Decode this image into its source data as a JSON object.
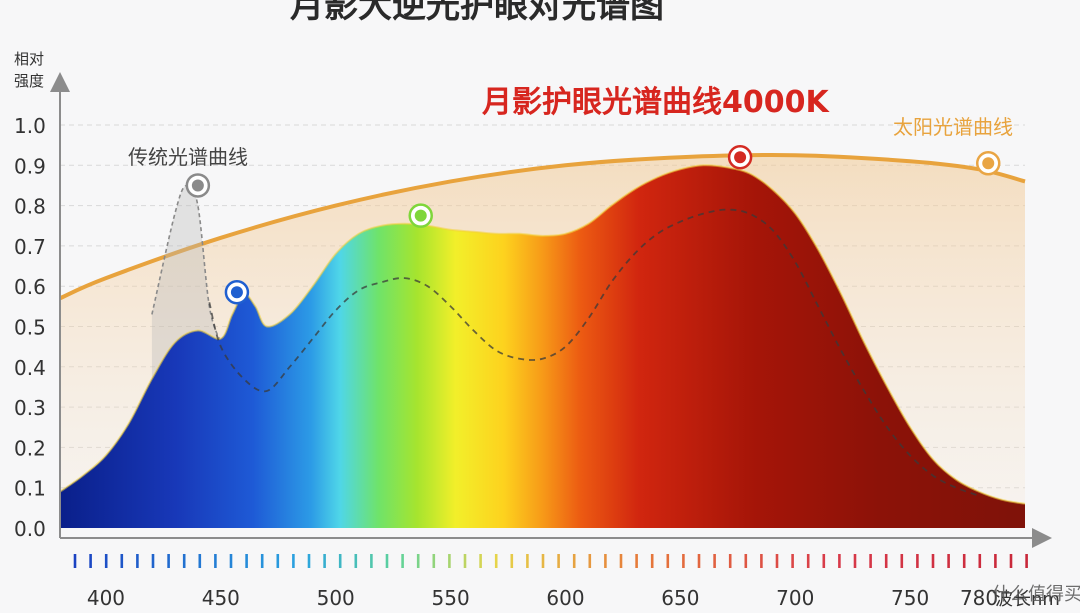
{
  "page_title": "月影大逆光护眼对光谱图",
  "watermark": "什么值得买",
  "chart_data": {
    "type": "area",
    "title": "月影护眼光谱曲线4000K",
    "ylabel": "相对强度",
    "xlabel": "波长nm",
    "xlim": [
      380,
      800
    ],
    "ylim": [
      0,
      1.0
    ],
    "x_ticks": [
      400,
      450,
      500,
      550,
      600,
      650,
      700,
      750,
      780
    ],
    "y_ticks": [
      "0.0",
      "0.1",
      "0.2",
      "0.3",
      "0.4",
      "0.5",
      "0.6",
      "0.7",
      "0.8",
      "0.9",
      "1.0"
    ],
    "grid": true,
    "series": [
      {
        "name": "月影护眼光谱曲线4000K",
        "x": [
          380,
          390,
          400,
          410,
          420,
          430,
          440,
          450,
          455,
          460,
          465,
          470,
          480,
          490,
          500,
          510,
          520,
          530,
          540,
          550,
          560,
          570,
          580,
          590,
          600,
          610,
          620,
          630,
          640,
          650,
          660,
          670,
          680,
          690,
          700,
          710,
          720,
          730,
          740,
          750,
          760,
          770,
          780,
          790,
          800
        ],
        "y": [
          0.09,
          0.13,
          0.18,
          0.26,
          0.37,
          0.46,
          0.49,
          0.47,
          0.53,
          0.58,
          0.55,
          0.5,
          0.53,
          0.6,
          0.68,
          0.73,
          0.75,
          0.755,
          0.75,
          0.74,
          0.735,
          0.73,
          0.73,
          0.725,
          0.73,
          0.755,
          0.8,
          0.84,
          0.87,
          0.89,
          0.9,
          0.895,
          0.88,
          0.84,
          0.78,
          0.69,
          0.58,
          0.46,
          0.35,
          0.25,
          0.17,
          0.12,
          0.09,
          0.07,
          0.06
        ]
      },
      {
        "name": "传统光谱曲线",
        "x": [
          420,
          430,
          435,
          440,
          445,
          450
        ],
        "y": [
          0.53,
          0.78,
          0.85,
          0.8,
          0.55,
          0.46
        ]
      },
      {
        "name": "",
        "x": [
          445,
          450,
          460,
          470,
          480,
          490,
          500,
          510,
          520,
          530,
          540,
          550,
          560,
          570,
          580,
          590,
          600,
          610,
          620,
          630,
          640,
          650,
          660,
          670,
          680,
          690,
          700,
          710,
          720,
          730,
          740,
          750,
          760,
          770,
          780
        ],
        "y": [
          0.56,
          0.45,
          0.37,
          0.34,
          0.4,
          0.47,
          0.54,
          0.59,
          0.61,
          0.62,
          0.6,
          0.55,
          0.49,
          0.44,
          0.42,
          0.42,
          0.45,
          0.52,
          0.61,
          0.68,
          0.73,
          0.76,
          0.78,
          0.79,
          0.78,
          0.74,
          0.66,
          0.55,
          0.44,
          0.34,
          0.25,
          0.18,
          0.13,
          0.1,
          0.08
        ]
      },
      {
        "name": "太阳光谱曲线",
        "x": [
          380,
          400,
          450,
          500,
          550,
          600,
          650,
          700,
          750,
          780,
          800
        ],
        "y": [
          0.57,
          0.62,
          0.72,
          0.8,
          0.86,
          0.9,
          0.92,
          0.925,
          0.91,
          0.89,
          0.86
        ]
      }
    ],
    "markers": [
      {
        "x": 440,
        "y": 0.85,
        "color": "#8a8a8a"
      },
      {
        "x": 457,
        "y": 0.585,
        "color": "#1f5fd0"
      },
      {
        "x": 537,
        "y": 0.775,
        "color": "#7fd63a"
      },
      {
        "x": 676,
        "y": 0.92,
        "color": "#d42a22"
      },
      {
        "x": 784,
        "y": 0.905,
        "color": "#e9a544"
      }
    ],
    "colors": {
      "title": "#d7261f",
      "sun": "#e8a33d",
      "traditional": "#7a7a7a",
      "axis": "#8c8c8c",
      "grid": "#d9d9d9"
    }
  }
}
